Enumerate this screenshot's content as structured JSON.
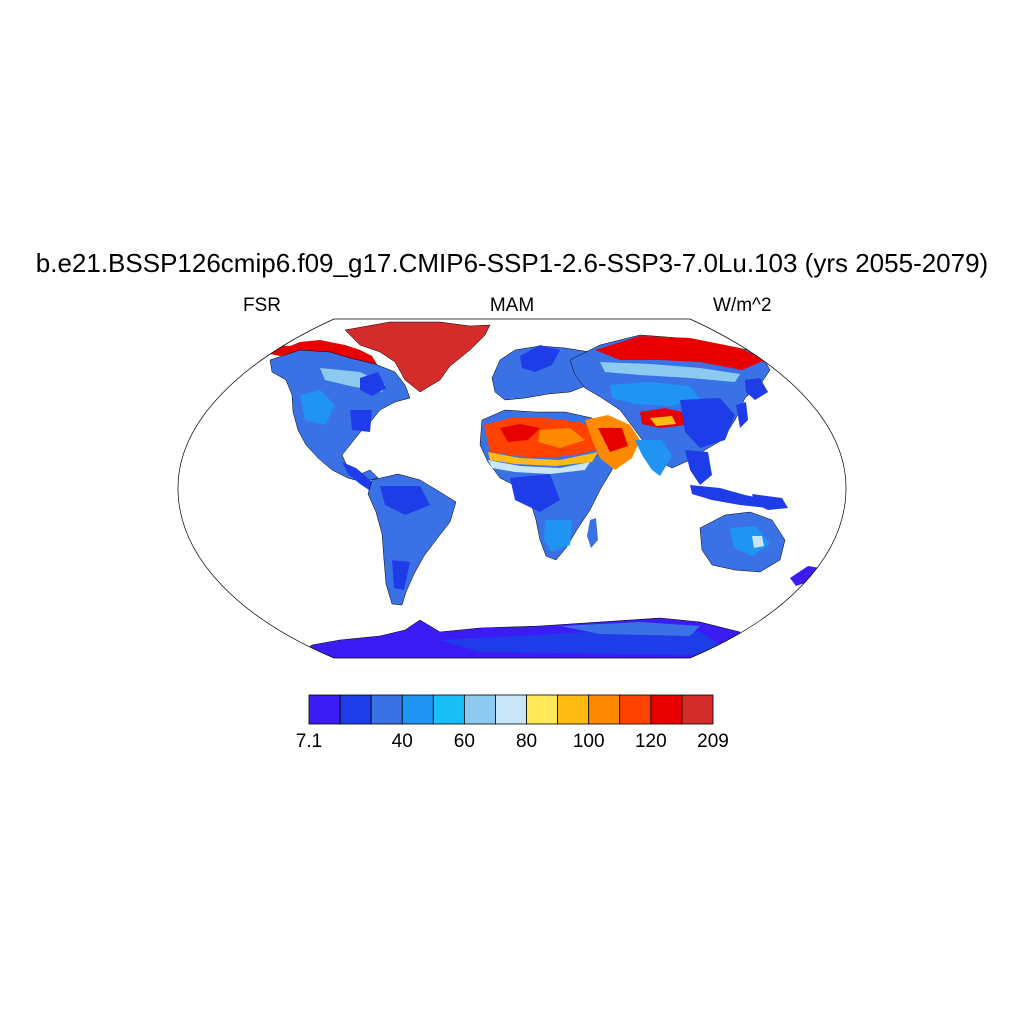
{
  "title": "b.e21.BSSP126cmip6.f09_g17.CMIP6-SSP1-2.6-SSP3-7.0Lu.103 (yrs 2055-2079)",
  "left_label": "FSR",
  "center_label": "MAM",
  "right_label": "W/m^2",
  "colorbar": {
    "colors": [
      "#3b1cf4",
      "#1e3de8",
      "#3a72e6",
      "#1f94f2",
      "#18bff7",
      "#8ccaf0",
      "#c8e6f8",
      "#ffe958",
      "#ffbb12",
      "#ff8a00",
      "#ff4200",
      "#e80000",
      "#d42b2b"
    ],
    "labels": [
      "7.1",
      "",
      "40",
      "60",
      "80",
      "100",
      "120",
      "209"
    ]
  },
  "map_colors": {
    "base": "#3a72e6",
    "light_blue": "#1f94f2",
    "cyan": "#18bff7",
    "dark_blue": "#1e3de8",
    "violet": "#3b1cf4",
    "pale": "#c8e6f8",
    "yellow": "#ffe958",
    "orange": "#ff8a00",
    "red": "#e80000",
    "dark_red": "#d42b2b"
  }
}
